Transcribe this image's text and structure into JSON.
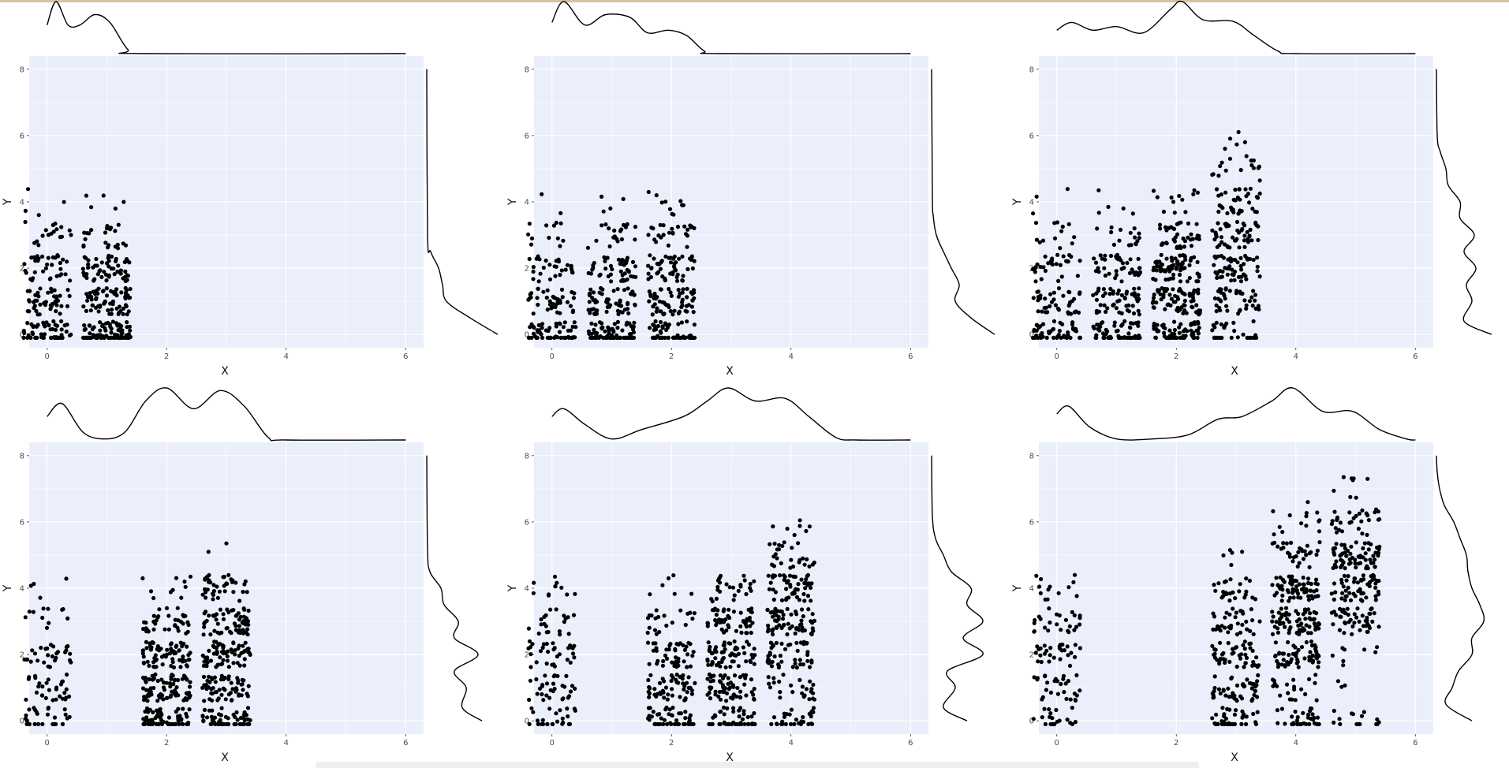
{
  "colors": {
    "panel_bg": "#eaeffb",
    "grid": "#ffffff",
    "point": "#000000",
    "density": "#000000",
    "axis_text": "#4d4d4d"
  },
  "chart_data": [
    {
      "type": "scatter",
      "xlabel": "X",
      "ylabel": "Y",
      "xlim": [
        -0.3,
        6.3
      ],
      "ylim": [
        -0.4,
        8.4
      ],
      "x_ticks": [
        "0",
        "2",
        "4",
        "6"
      ],
      "y_ticks": [
        "0",
        "2",
        "4",
        "6",
        "8"
      ],
      "grid": true,
      "marginals": "density",
      "clusters": [
        {
          "x": 0,
          "y_counts": [
            60,
            45,
            35,
            15,
            4
          ],
          "outliers": [
            [
              0.1,
              3.3
            ],
            [
              0.4,
              3.0
            ]
          ]
        },
        {
          "x": 1,
          "y_counts": [
            90,
            70,
            55,
            20,
            5
          ],
          "outliers": [
            [
              0.7,
              3.05
            ],
            [
              1.0,
              3.2
            ]
          ]
        }
      ],
      "x_density": [
        [
          0,
          0.55
        ],
        [
          0.15,
          1.0
        ],
        [
          0.35,
          0.55
        ],
        [
          0.55,
          0.55
        ],
        [
          0.8,
          0.75
        ],
        [
          1.05,
          0.6
        ],
        [
          1.35,
          0.08
        ],
        [
          1.6,
          0
        ],
        [
          6,
          0
        ]
      ],
      "y_density": [
        [
          0,
          0.9
        ],
        [
          0.5,
          0.55
        ],
        [
          1,
          0.25
        ],
        [
          1.5,
          0.2
        ],
        [
          2,
          0.15
        ],
        [
          2.5,
          0.05
        ],
        [
          3,
          0.01
        ],
        [
          8,
          0
        ]
      ]
    },
    {
      "type": "scatter",
      "xlabel": "X",
      "ylabel": "Y",
      "xlim": [
        -0.3,
        6.3
      ],
      "ylim": [
        -0.4,
        8.4
      ],
      "x_ticks": [
        "0",
        "2",
        "4",
        "6"
      ],
      "y_ticks": [
        "0",
        "2",
        "4",
        "6",
        "8"
      ],
      "grid": true,
      "marginals": "density",
      "clusters": [
        {
          "x": 0,
          "y_counts": [
            55,
            40,
            28,
            10,
            2
          ],
          "outliers": [
            [
              0.15,
              3.35
            ],
            [
              0.1,
              2.9
            ]
          ]
        },
        {
          "x": 1,
          "y_counts": [
            80,
            60,
            45,
            18,
            4
          ],
          "outliers": [
            [
              1.2,
              3.3
            ],
            [
              0.95,
              3.2
            ]
          ]
        },
        {
          "x": 2,
          "y_counts": [
            60,
            60,
            50,
            25,
            8
          ],
          "outliers": [
            [
              1.75,
              4.2
            ],
            [
              2.2,
              3.9
            ]
          ]
        }
      ],
      "x_density": [
        [
          0,
          0.6
        ],
        [
          0.2,
          1.0
        ],
        [
          0.55,
          0.55
        ],
        [
          0.9,
          0.75
        ],
        [
          1.3,
          0.7
        ],
        [
          1.6,
          0.4
        ],
        [
          1.95,
          0.45
        ],
        [
          2.25,
          0.35
        ],
        [
          2.55,
          0.05
        ],
        [
          2.8,
          0
        ],
        [
          6,
          0
        ]
      ],
      "y_density": [
        [
          0,
          0.8
        ],
        [
          0.5,
          0.5
        ],
        [
          1,
          0.3
        ],
        [
          1.5,
          0.35
        ],
        [
          2,
          0.25
        ],
        [
          2.5,
          0.15
        ],
        [
          3,
          0.06
        ],
        [
          3.6,
          0.02
        ],
        [
          4.2,
          0.01
        ],
        [
          8,
          0
        ]
      ]
    },
    {
      "type": "scatter",
      "xlabel": "X",
      "ylabel": "Y",
      "xlim": [
        -0.3,
        6.3
      ],
      "ylim": [
        -0.4,
        8.4
      ],
      "x_ticks": [
        "0",
        "2",
        "4",
        "6"
      ],
      "y_ticks": [
        "0",
        "2",
        "4",
        "6",
        "8"
      ],
      "grid": true,
      "marginals": "density",
      "clusters": [
        {
          "x": 0,
          "y_counts": [
            50,
            40,
            30,
            12,
            3
          ],
          "outliers": [
            [
              0.1,
              3.25
            ]
          ]
        },
        {
          "x": 1,
          "y_counts": [
            60,
            50,
            40,
            15,
            4
          ],
          "outliers": [
            [
              0.7,
              4.35
            ],
            [
              1.3,
              3.2
            ]
          ]
        },
        {
          "x": 2,
          "y_counts": [
            70,
            75,
            70,
            40,
            10
          ],
          "outliers": [
            [
              2.3,
              4.35
            ],
            [
              1.95,
              4.0
            ]
          ]
        },
        {
          "x": 3,
          "y_counts": [
            30,
            40,
            50,
            50,
            35,
            15,
            4
          ],
          "outliers": [
            [
              3.15,
              5.8
            ],
            [
              2.9,
              5.3
            ]
          ]
        }
      ],
      "x_density": [
        [
          0,
          0.45
        ],
        [
          0.25,
          0.6
        ],
        [
          0.6,
          0.45
        ],
        [
          1.0,
          0.52
        ],
        [
          1.45,
          0.4
        ],
        [
          1.9,
          0.85
        ],
        [
          2.1,
          1.0
        ],
        [
          2.45,
          0.65
        ],
        [
          2.95,
          0.62
        ],
        [
          3.3,
          0.35
        ],
        [
          3.7,
          0.05
        ],
        [
          4.0,
          0
        ],
        [
          6,
          0
        ]
      ],
      "y_density": [
        [
          0,
          0.7
        ],
        [
          0.4,
          0.35
        ],
        [
          1,
          0.45
        ],
        [
          1.5,
          0.38
        ],
        [
          2,
          0.5
        ],
        [
          2.5,
          0.35
        ],
        [
          3,
          0.48
        ],
        [
          3.5,
          0.3
        ],
        [
          4,
          0.3
        ],
        [
          4.5,
          0.15
        ],
        [
          5,
          0.12
        ],
        [
          5.5,
          0.05
        ],
        [
          6,
          0.01
        ],
        [
          8,
          0
        ]
      ]
    },
    {
      "type": "scatter",
      "xlabel": "X",
      "ylabel": "Y",
      "xlim": [
        -0.3,
        6.3
      ],
      "ylim": [
        -0.4,
        8.4
      ],
      "x_ticks": [
        "0",
        "2",
        "4",
        "6"
      ],
      "y_ticks": [
        "0",
        "2",
        "4",
        "6",
        "8"
      ],
      "grid": true,
      "marginals": "density",
      "clusters": [
        {
          "x": 0,
          "y_counts": [
            25,
            30,
            28,
            10,
            4
          ],
          "outliers": [
            [
              0.25,
              3.35
            ]
          ]
        },
        {
          "x": 2,
          "y_counts": [
            70,
            75,
            70,
            35,
            8
          ],
          "outliers": [
            [
              1.6,
              4.3
            ],
            [
              2.3,
              4.2
            ]
          ]
        },
        {
          "x": 3,
          "y_counts": [
            60,
            60,
            65,
            60,
            40
          ],
          "outliers": [
            [
              2.7,
              5.1
            ],
            [
              3.0,
              5.35
            ]
          ]
        }
      ],
      "x_density": [
        [
          0,
          0.45
        ],
        [
          0.25,
          0.7
        ],
        [
          0.6,
          0.15
        ],
        [
          0.95,
          0.02
        ],
        [
          1.3,
          0.15
        ],
        [
          1.65,
          0.75
        ],
        [
          2.0,
          1.0
        ],
        [
          2.45,
          0.6
        ],
        [
          2.9,
          0.95
        ],
        [
          3.3,
          0.65
        ],
        [
          3.7,
          0.05
        ],
        [
          4.0,
          0
        ],
        [
          6,
          0
        ]
      ],
      "y_density": [
        [
          0,
          0.7
        ],
        [
          0.4,
          0.45
        ],
        [
          1,
          0.5
        ],
        [
          1.5,
          0.35
        ],
        [
          2,
          0.65
        ],
        [
          2.5,
          0.35
        ],
        [
          3,
          0.4
        ],
        [
          3.5,
          0.22
        ],
        [
          4,
          0.18
        ],
        [
          4.5,
          0.04
        ],
        [
          5.2,
          0.01
        ],
        [
          8,
          0
        ]
      ]
    },
    {
      "type": "scatter",
      "xlabel": "X",
      "ylabel": "Y",
      "xlim": [
        -0.3,
        6.3
      ],
      "ylim": [
        -0.4,
        8.4
      ],
      "x_ticks": [
        "0",
        "2",
        "4",
        "6"
      ],
      "y_ticks": [
        "0",
        "2",
        "4",
        "6",
        "8"
      ],
      "grid": true,
      "marginals": "density",
      "clusters": [
        {
          "x": 0,
          "y_counts": [
            25,
            30,
            30,
            20,
            10
          ],
          "outliers": [
            [
              0.05,
              4.35
            ]
          ]
        },
        {
          "x": 2,
          "y_counts": [
            45,
            50,
            45,
            20,
            5
          ],
          "outliers": [
            [
              1.95,
              4.3
            ]
          ]
        },
        {
          "x": 3,
          "y_counts": [
            50,
            60,
            60,
            50,
            25
          ],
          "outliers": [
            [
              2.8,
              4.3
            ]
          ]
        },
        {
          "x": 4,
          "y_counts": [
            30,
            25,
            45,
            60,
            55,
            25,
            6
          ],
          "outliers": [
            [
              4.15,
              6.05
            ],
            [
              3.8,
              5.3
            ]
          ]
        }
      ],
      "x_density": [
        [
          0,
          0.45
        ],
        [
          0.2,
          0.6
        ],
        [
          0.55,
          0.3
        ],
        [
          1.0,
          0.02
        ],
        [
          1.5,
          0.2
        ],
        [
          2.2,
          0.45
        ],
        [
          2.6,
          0.75
        ],
        [
          2.95,
          1.0
        ],
        [
          3.4,
          0.75
        ],
        [
          3.9,
          0.8
        ],
        [
          4.3,
          0.45
        ],
        [
          4.75,
          0.05
        ],
        [
          5.1,
          0
        ],
        [
          6,
          0
        ]
      ],
      "y_density": [
        [
          0,
          0.45
        ],
        [
          0.4,
          0.15
        ],
        [
          1,
          0.3
        ],
        [
          1.5,
          0.2
        ],
        [
          2,
          0.65
        ],
        [
          2.5,
          0.4
        ],
        [
          3,
          0.65
        ],
        [
          3.5,
          0.45
        ],
        [
          4,
          0.5
        ],
        [
          4.5,
          0.25
        ],
        [
          5,
          0.15
        ],
        [
          5.5,
          0.05
        ],
        [
          6.2,
          0.01
        ],
        [
          8,
          0
        ]
      ]
    },
    {
      "type": "scatter",
      "xlabel": "X",
      "ylabel": "Y",
      "xlim": [
        -0.3,
        6.3
      ],
      "ylim": [
        -0.4,
        8.4
      ],
      "x_ticks": [
        "0",
        "2",
        "4",
        "6"
      ],
      "y_ticks": [
        "0",
        "2",
        "4",
        "6",
        "8"
      ],
      "grid": true,
      "marginals": "density",
      "clusters": [
        {
          "x": 0,
          "y_counts": [
            20,
            28,
            28,
            25,
            12
          ],
          "outliers": [
            [
              0.3,
              4.4
            ]
          ]
        },
        {
          "x": 3,
          "y_counts": [
            45,
            45,
            45,
            35,
            25,
            3
          ],
          "outliers": [
            [
              2.9,
              5.15
            ],
            [
              3.1,
              5.1
            ]
          ]
        },
        {
          "x": 4,
          "y_counts": [
            35,
            20,
            55,
            70,
            65,
            30,
            12
          ],
          "outliers": [
            [
              4.2,
              6.6
            ],
            [
              3.9,
              6.2
            ]
          ]
        },
        {
          "x": 5,
          "y_counts": [
            15,
            3,
            8,
            45,
            55,
            65,
            30,
            6
          ],
          "outliers": [
            [
              4.8,
              7.35
            ],
            [
              5.2,
              7.3
            ]
          ]
        }
      ],
      "x_density": [
        [
          0,
          0.5
        ],
        [
          0.2,
          0.65
        ],
        [
          0.55,
          0.25
        ],
        [
          1.0,
          0.02
        ],
        [
          1.6,
          0.02
        ],
        [
          2.2,
          0.1
        ],
        [
          2.7,
          0.4
        ],
        [
          3.1,
          0.45
        ],
        [
          3.6,
          0.75
        ],
        [
          3.95,
          1.0
        ],
        [
          4.45,
          0.55
        ],
        [
          4.95,
          0.55
        ],
        [
          5.4,
          0.2
        ],
        [
          5.85,
          0.02
        ],
        [
          6,
          0
        ]
      ],
      "y_density": [
        [
          0,
          0.45
        ],
        [
          0.5,
          0.12
        ],
        [
          1,
          0.2
        ],
        [
          1.5,
          0.28
        ],
        [
          2,
          0.45
        ],
        [
          2.5,
          0.45
        ],
        [
          3,
          0.6
        ],
        [
          3.5,
          0.55
        ],
        [
          4,
          0.45
        ],
        [
          4.5,
          0.4
        ],
        [
          5,
          0.38
        ],
        [
          5.5,
          0.3
        ],
        [
          6,
          0.22
        ],
        [
          6.5,
          0.1
        ],
        [
          7,
          0.04
        ],
        [
          7.5,
          0.01
        ],
        [
          8,
          0
        ]
      ]
    }
  ]
}
